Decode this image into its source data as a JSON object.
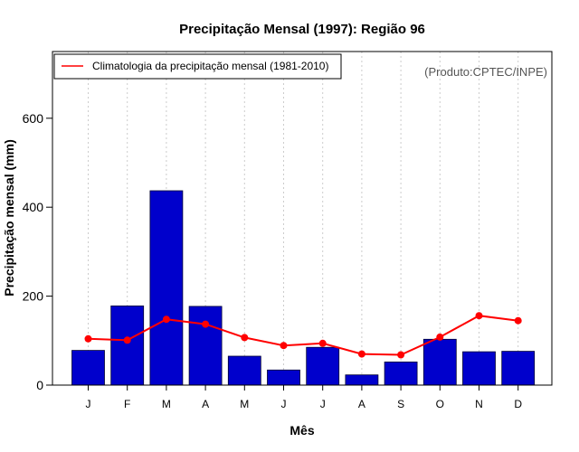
{
  "chart_data": {
    "type": "bar",
    "title": "Precipitação Mensal (1997): Região 96",
    "xlabel": "Mês",
    "ylabel": "Precipitação mensal (mm)",
    "ylim": [
      0,
      750
    ],
    "yticks": [
      0,
      200,
      400,
      600
    ],
    "categories": [
      "J",
      "F",
      "M",
      "A",
      "M",
      "J",
      "J",
      "A",
      "S",
      "O",
      "N",
      "D"
    ],
    "series": [
      {
        "name": "Precipitação mensal (1997)",
        "type": "bar",
        "values": [
          78,
          178,
          437,
          177,
          65,
          34,
          85,
          23,
          52,
          103,
          75,
          76
        ]
      },
      {
        "name": "Climatologia da precipitação mensal (1981-2010)",
        "type": "line",
        "values": [
          104,
          101,
          148,
          137,
          107,
          89,
          94,
          70,
          68,
          108,
          156,
          145
        ]
      }
    ],
    "legend": {
      "position": "top-left",
      "entries": [
        "Climatologia da precipitação mensal (1981-2010)"
      ]
    },
    "annotation": "(Produto:CPTEC/INPE)",
    "grid": "vertical dotted",
    "colors": {
      "bar": "#0000cc",
      "bar_border": "#000033",
      "line": "#ff0000",
      "grid": "#cccccc"
    }
  }
}
